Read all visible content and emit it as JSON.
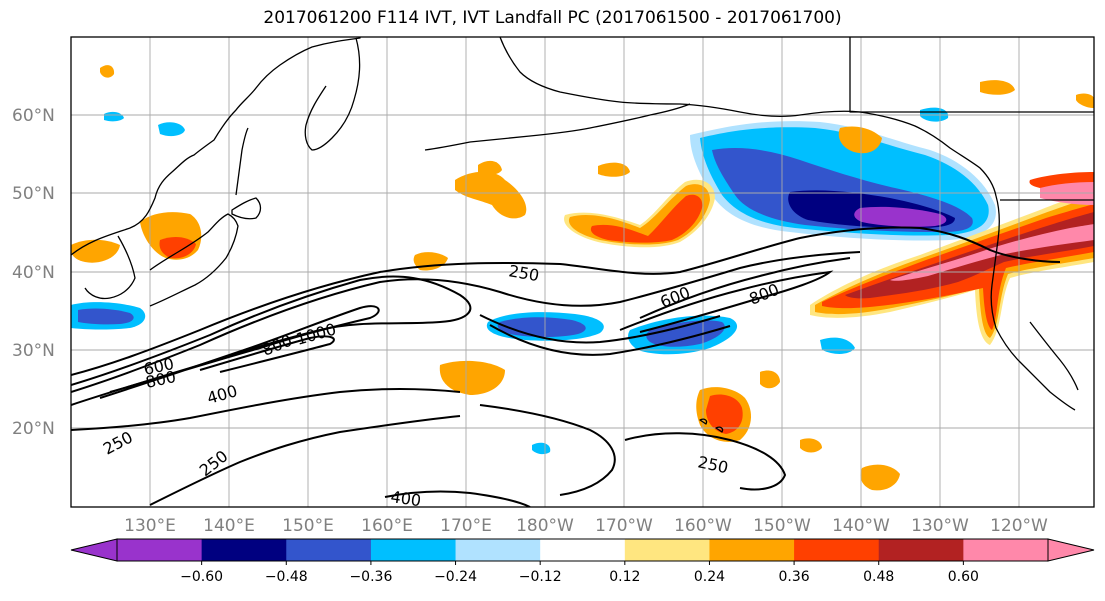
{
  "title": "2017061200 F114 IVT, IVT Landfall PC (2017061500 - 2017061700)",
  "axes": {
    "lat_labels": [
      "60°N",
      "50°N",
      "40°N",
      "30°N",
      "20°N"
    ],
    "lon_labels": [
      "130°E",
      "140°E",
      "150°E",
      "160°E",
      "170°E",
      "180°W",
      "170°W",
      "160°W",
      "150°W",
      "140°W",
      "130°W",
      "120°W"
    ],
    "gridlines": true
  },
  "contour_labels": [
    "250",
    "600",
    "800",
    "800",
    "1000",
    "600",
    "800",
    "400",
    "250",
    "250",
    "250",
    "400"
  ],
  "colorbar": {
    "tick_labels": [
      "−0.60",
      "−0.48",
      "−0.36",
      "−0.24",
      "−0.12",
      "0.12",
      "0.24",
      "0.36",
      "0.48",
      "0.60"
    ],
    "colors": [
      "#9933cc",
      "#000080",
      "#3355cc",
      "#00bfff",
      "#b0e2ff",
      "#ffffff",
      "#ffe680",
      "#ffa500",
      "#ff4000",
      "#b22222",
      "#ff88aa"
    ]
  },
  "palette": {
    "land_outline": "#000000",
    "gridline": "#aaaaaa"
  }
}
